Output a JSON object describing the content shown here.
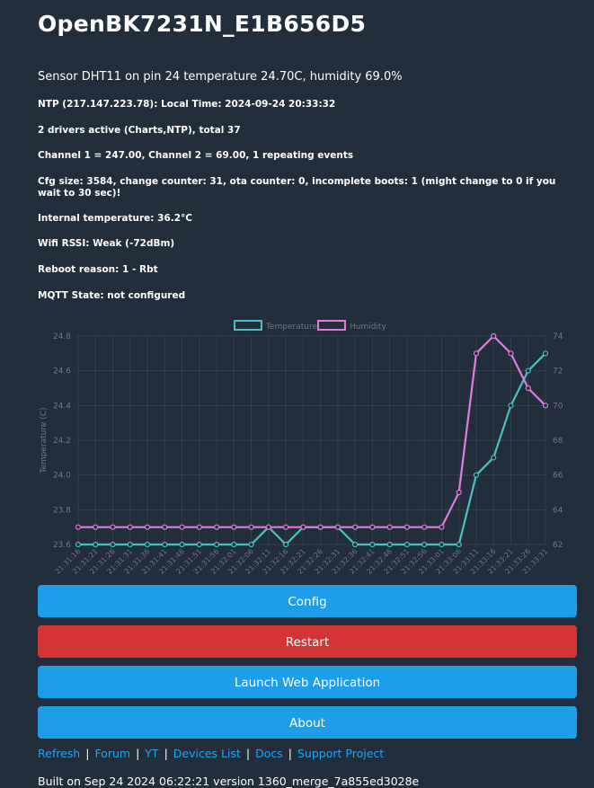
{
  "title": "OpenBK7231N_E1B656D5",
  "sensor_line": "Sensor DHT11 on pin 24 temperature 24.70C, humidity 69.0%",
  "info": [
    "NTP (217.147.223.78): Local Time: 2024-09-24 20:33:32",
    "2 drivers active (Charts,NTP), total 37",
    "Channel 1 = 247.00, Channel 2 = 69.00, 1 repeating events",
    "Cfg size: 3584, change counter: 31, ota counter: 0, incomplete boots: 1 (might change to 0 if you wait to 30 sec)!",
    "Internal temperature: 36.2°C",
    "Wifi RSSI: Weak (-72dBm)",
    "Reboot reason: 1 - Rbt",
    "MQTT State: not configured"
  ],
  "buttons": {
    "config": "Config",
    "restart": "Restart",
    "launch": "Launch Web Application",
    "about": "About"
  },
  "links": [
    "Refresh",
    "Forum",
    "YT",
    "Devices List",
    "Docs",
    "Support Project"
  ],
  "link_separator": "|",
  "built": "Built on Sep 24 2024 06:22:21 version 1360_merge_7a855ed3028e",
  "colors": {
    "background": "#222e3b",
    "accent": "#1e9ee8",
    "danger": "#d33535",
    "temperature": "#4bc0c0",
    "humidity": "#e07be0"
  },
  "chart_data": {
    "type": "line",
    "legend_position": "top",
    "grid": true,
    "x": [
      "21:31:16",
      "21:31:21",
      "21:31:26",
      "21:31:31",
      "21:31:36",
      "21:31:41",
      "21:31:46",
      "21:31:51",
      "21:31:56",
      "21:32:01",
      "21:32:06",
      "21:32:11",
      "21:32:16",
      "21:32:21",
      "21:32:26",
      "21:32:31",
      "21:32:36",
      "21:32:41",
      "21:32:46",
      "21:32:51",
      "21:32:56",
      "21:33:01",
      "21:33:06",
      "21:33:11",
      "21:33:16",
      "21:33:21",
      "21:33:26",
      "21:33:31"
    ],
    "series": [
      {
        "name": "Temperature",
        "axis": "left",
        "color": "#4bc0c0",
        "values": [
          23.6,
          23.6,
          23.6,
          23.6,
          23.6,
          23.6,
          23.6,
          23.6,
          23.6,
          23.6,
          23.6,
          23.7,
          23.6,
          23.7,
          23.7,
          23.7,
          23.6,
          23.6,
          23.6,
          23.6,
          23.6,
          23.6,
          23.6,
          24.0,
          24.1,
          24.4,
          24.6,
          24.7
        ]
      },
      {
        "name": "Humidity",
        "axis": "right",
        "color": "#e07be0",
        "values": [
          63,
          63,
          63,
          63,
          63,
          63,
          63,
          63,
          63,
          63,
          63,
          63,
          63,
          63,
          63,
          63,
          63,
          63,
          63,
          63,
          63,
          63,
          65,
          73,
          74,
          73,
          71,
          70
        ]
      }
    ],
    "ylabel_left": "Temperature (C)",
    "ylabel_right": "Humidity (%)",
    "ylim_left": [
      23.6,
      24.8
    ],
    "ylim_right": [
      62,
      74
    ],
    "yticks_left": [
      "23.6",
      "23.8",
      "24.0",
      "24.2",
      "24.4",
      "24.6",
      "24.8"
    ],
    "yticks_right": [
      "62",
      "64",
      "66",
      "68",
      "70",
      "72",
      "74"
    ]
  }
}
